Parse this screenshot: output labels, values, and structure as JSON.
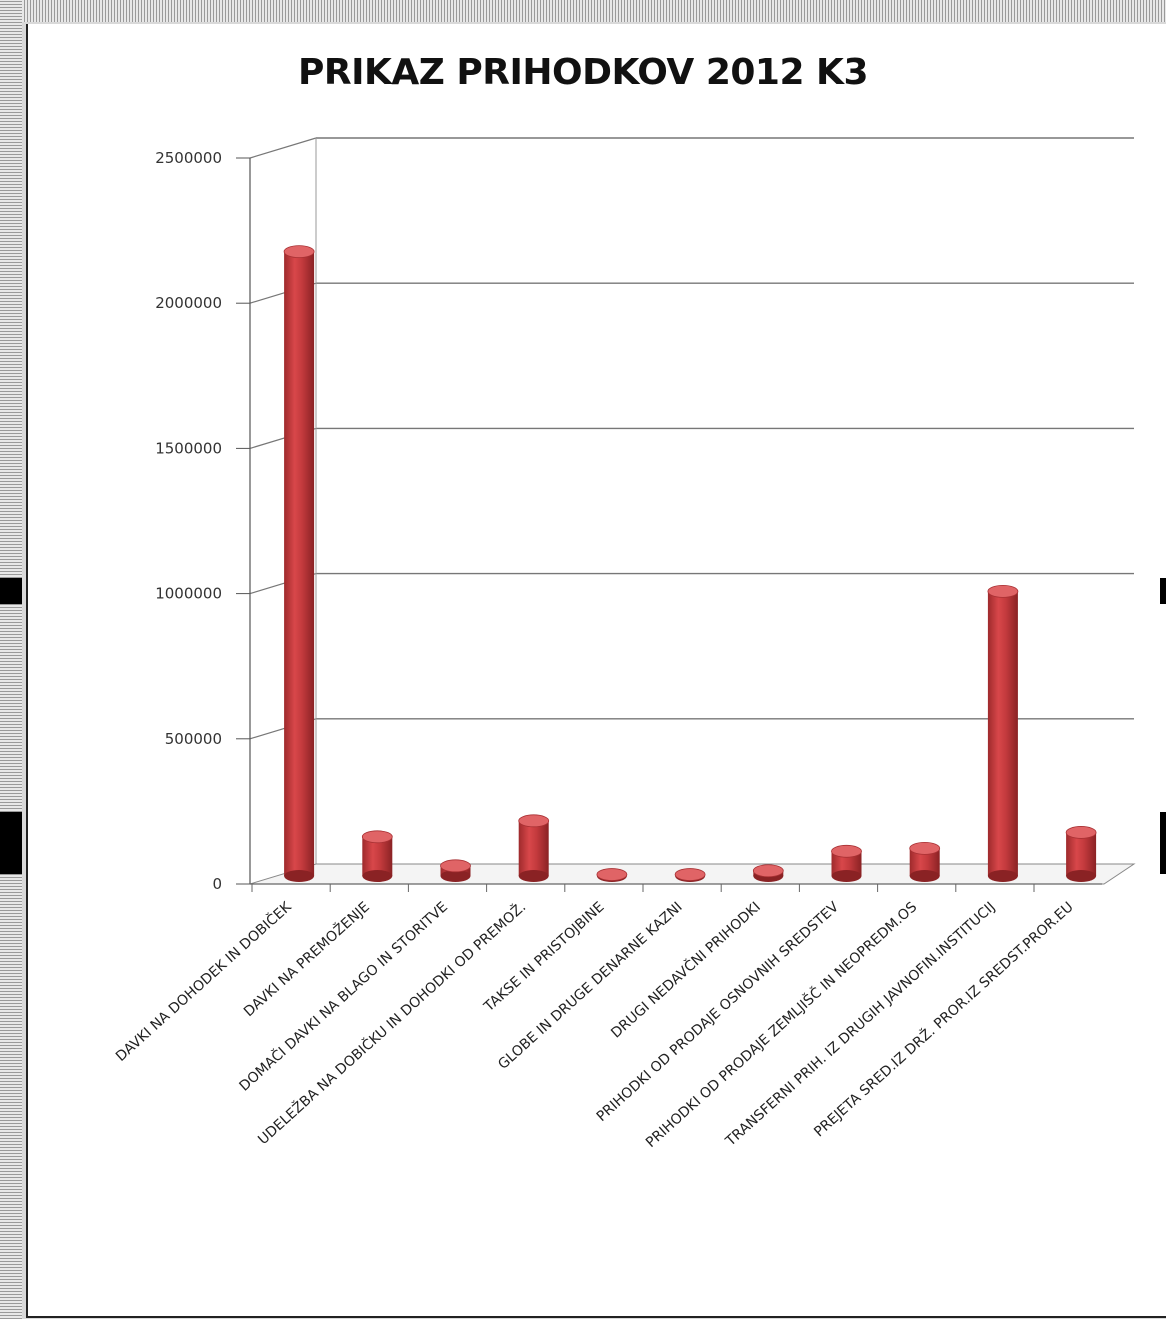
{
  "chart_data": {
    "type": "bar",
    "title": "PRIKAZ PRIHODKOV 2012 K3",
    "xlabel": "",
    "ylabel": "",
    "ylim": [
      0,
      2500000
    ],
    "yticks": [
      "0",
      "500000",
      "1000000",
      "1500000",
      "2000000",
      "2500000"
    ],
    "grid": true,
    "legend": "none",
    "bar_color": "#c0393b",
    "categories": [
      "DAVKI NA DOHODEK IN DOBIČEK",
      "DAVKI NA PREMOŽENJE",
      "DOMAČI DAVKI NA BLAGO IN STORITVE",
      "UDELEŽBA NA DOBIČKU IN DOHODKI OD PREMOŽ.",
      "TAKSE IN PRISTOJBINE",
      "GLOBE IN DRUGE DENARNE KAZNI",
      "DRUGI NEDAVČNI PRIHODKI",
      "PRIHODKI OD PRODAJE OSNOVNIH SREDSTEV",
      "PRIHODKI OD PRODAJE ZEMLJIŠČ IN NEOPREDM.OS",
      "TRANSFERNI PRIH. IZ DRUGIH JAVNOFIN.INSTITUCIJ",
      "PREJETA SRED.IZ DRŽ. PROR.IZ SREDST.PROR.EU"
    ],
    "values": [
      2150000,
      135000,
      35000,
      190000,
      5000,
      5000,
      18000,
      85000,
      95000,
      980000,
      150000
    ]
  }
}
